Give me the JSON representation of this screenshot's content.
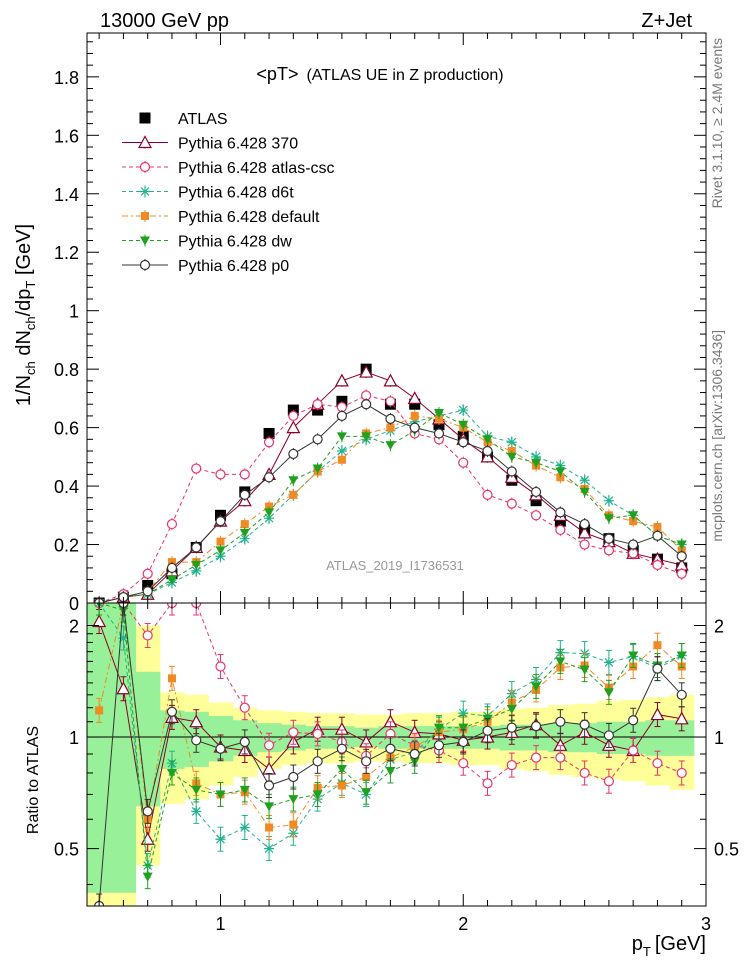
{
  "header": {
    "left": "13000 GeV pp",
    "right": "Z+Jet"
  },
  "side_labels": {
    "rivet": "Rivet 3.1.10, ≥ 2.4M events",
    "mcplots": "mcplots.cern.ch [arXiv:1306.3436]"
  },
  "watermark": "ATLAS_2019_I1736531",
  "colors": {
    "atlas": "#000000",
    "p370": "#8b0028",
    "atlascsc": "#e8336b",
    "d6t": "#21b38f",
    "default": "#f08a24",
    "dw": "#1fa01f",
    "p0": "#333333",
    "band_inner": "#98f098",
    "band_outer": "#ffff99"
  },
  "chart_data": [
    {
      "type": "scatter",
      "title": "<pT>",
      "subtitle": "(ATLAS UE in Z production)",
      "xlabel": "p",
      "xlabel_sub": "T",
      "xlabel_unit": "[GeV]",
      "ylabel_parts": [
        "1/N",
        "ch",
        " dN",
        "ch",
        "/dp",
        "T",
        " [GeV]"
      ],
      "xlim": [
        0.45,
        3.0
      ],
      "ylim": [
        0,
        1.95
      ],
      "yticks": [
        0,
        0.2,
        0.4,
        0.6,
        0.8,
        1,
        1.2,
        1.4,
        1.6,
        1.8
      ],
      "ytick_labels": [
        "0",
        "0.2",
        "0.4",
        "0.6",
        "0.8",
        "1",
        "1.2",
        "1.4",
        "1.6",
        "1.8"
      ],
      "x": [
        0.5,
        0.6,
        0.7,
        0.8,
        0.9,
        1.0,
        1.1,
        1.2,
        1.3,
        1.4,
        1.5,
        1.6,
        1.7,
        1.8,
        1.9,
        2.0,
        2.1,
        2.2,
        2.3,
        2.4,
        2.5,
        2.6,
        2.7,
        2.8,
        2.9
      ],
      "series": [
        {
          "name": "ATLAS",
          "key": "atlas",
          "marker": "square",
          "line": "none",
          "values": [
            0.0,
            0.02,
            0.06,
            0.1,
            0.19,
            0.3,
            0.38,
            0.58,
            0.66,
            0.66,
            0.69,
            0.8,
            0.68,
            0.68,
            0.61,
            0.57,
            0.5,
            0.42,
            0.35,
            0.28,
            0.25,
            0.22,
            0.18,
            0.15,
            0.12
          ]
        },
        {
          "name": "Pythia 6.428 370",
          "key": "p370",
          "marker": "triangle-open",
          "line": "solid",
          "values": [
            0.0,
            0.02,
            0.03,
            0.11,
            0.19,
            0.28,
            0.35,
            0.44,
            0.6,
            0.68,
            0.76,
            0.79,
            0.76,
            0.7,
            0.63,
            0.56,
            0.5,
            0.43,
            0.37,
            0.3,
            0.24,
            0.21,
            0.17,
            0.15,
            0.13
          ]
        },
        {
          "name": "Pythia 6.428 atlas-csc",
          "key": "atlascsc",
          "marker": "circle-open",
          "line": "dashed",
          "values": [
            0.0,
            0.03,
            0.1,
            0.27,
            0.46,
            0.44,
            0.44,
            0.55,
            0.64,
            0.68,
            0.67,
            0.71,
            0.69,
            0.58,
            0.56,
            0.48,
            0.37,
            0.34,
            0.3,
            0.25,
            0.2,
            0.18,
            0.17,
            0.13,
            0.1
          ]
        },
        {
          "name": "Pythia 6.428 d6t",
          "key": "d6t",
          "marker": "star",
          "line": "dashed",
          "values": [
            0.0,
            0.02,
            0.03,
            0.07,
            0.11,
            0.16,
            0.22,
            0.29,
            0.37,
            0.45,
            0.52,
            0.56,
            0.59,
            0.62,
            0.64,
            0.66,
            0.57,
            0.55,
            0.5,
            0.47,
            0.42,
            0.35,
            0.3,
            0.23,
            0.2
          ]
        },
        {
          "name": "Pythia 6.428 default",
          "key": "default",
          "marker": "square-small",
          "line": "dashdot",
          "values": [
            0.0,
            0.02,
            0.04,
            0.14,
            0.14,
            0.21,
            0.27,
            0.33,
            0.37,
            0.45,
            0.49,
            0.58,
            0.6,
            0.64,
            0.63,
            0.6,
            0.55,
            0.52,
            0.47,
            0.43,
            0.39,
            0.3,
            0.28,
            0.26,
            0.18
          ]
        },
        {
          "name": "Pythia 6.428 dw",
          "key": "dw",
          "marker": "triangle-down",
          "line": "dashed",
          "values": [
            0.0,
            0.02,
            0.03,
            0.08,
            0.13,
            0.18,
            0.24,
            0.31,
            0.42,
            0.46,
            0.57,
            0.57,
            0.54,
            0.59,
            0.65,
            0.61,
            0.56,
            0.5,
            0.48,
            0.45,
            0.38,
            0.29,
            0.3,
            0.23,
            0.2
          ]
        },
        {
          "name": "Pythia 6.428 p0",
          "key": "p0",
          "marker": "circle-open",
          "line": "solid",
          "values": [
            0.0,
            0.02,
            0.04,
            0.12,
            0.19,
            0.28,
            0.37,
            0.43,
            0.51,
            0.56,
            0.64,
            0.68,
            0.63,
            0.6,
            0.58,
            0.55,
            0.52,
            0.45,
            0.38,
            0.31,
            0.27,
            0.22,
            0.2,
            0.23,
            0.16
          ]
        }
      ],
      "legend": "top-left"
    },
    {
      "type": "scatter",
      "ylabel": "Ratio to ATLAS",
      "xlim": [
        0.45,
        3.0
      ],
      "ylim": [
        0.35,
        2.3
      ],
      "log_y": true,
      "xticks": [
        1,
        2,
        3
      ],
      "xtick_labels": [
        "1",
        "2",
        "3"
      ],
      "yticks": [
        0.5,
        1,
        2
      ],
      "ytick_labels": [
        "0.5",
        "1",
        "2"
      ],
      "band_inner": [
        [
          0.5,
          0.38,
          2.5
        ],
        [
          0.6,
          0.38,
          2.5
        ],
        [
          0.7,
          0.65,
          1.5
        ],
        [
          0.8,
          0.82,
          1.18
        ],
        [
          0.9,
          0.83,
          1.17
        ],
        [
          1.0,
          0.86,
          1.14
        ],
        [
          1.1,
          0.89,
          1.11
        ],
        [
          1.2,
          0.91,
          1.09
        ],
        [
          1.3,
          0.92,
          1.08
        ],
        [
          1.4,
          0.93,
          1.07
        ],
        [
          1.5,
          0.93,
          1.07
        ],
        [
          1.6,
          0.94,
          1.06
        ],
        [
          1.7,
          0.93,
          1.07
        ],
        [
          1.8,
          0.93,
          1.07
        ],
        [
          1.9,
          0.93,
          1.07
        ],
        [
          2.0,
          0.93,
          1.07
        ],
        [
          2.1,
          0.93,
          1.07
        ],
        [
          2.2,
          0.92,
          1.08
        ],
        [
          2.3,
          0.92,
          1.08
        ],
        [
          2.4,
          0.91,
          1.09
        ],
        [
          2.5,
          0.91,
          1.09
        ],
        [
          2.6,
          0.9,
          1.1
        ],
        [
          2.7,
          0.9,
          1.1
        ],
        [
          2.8,
          0.89,
          1.11
        ],
        [
          2.9,
          0.89,
          1.11
        ]
      ],
      "band_outer": [
        [
          0.5,
          0.35,
          2.5
        ],
        [
          0.6,
          0.35,
          2.5
        ],
        [
          0.7,
          0.45,
          2.0
        ],
        [
          0.8,
          0.66,
          1.32
        ],
        [
          0.9,
          0.68,
          1.3
        ],
        [
          1.0,
          0.74,
          1.24
        ],
        [
          1.1,
          0.78,
          1.2
        ],
        [
          1.2,
          0.82,
          1.18
        ],
        [
          1.3,
          0.84,
          1.17
        ],
        [
          1.4,
          0.85,
          1.16
        ],
        [
          1.5,
          0.85,
          1.16
        ],
        [
          1.6,
          0.86,
          1.15
        ],
        [
          1.7,
          0.86,
          1.15
        ],
        [
          1.8,
          0.85,
          1.16
        ],
        [
          1.9,
          0.85,
          1.16
        ],
        [
          2.0,
          0.84,
          1.17
        ],
        [
          2.1,
          0.84,
          1.17
        ],
        [
          2.2,
          0.82,
          1.19
        ],
        [
          2.3,
          0.81,
          1.2
        ],
        [
          2.4,
          0.79,
          1.22
        ],
        [
          2.5,
          0.78,
          1.23
        ],
        [
          2.6,
          0.77,
          1.25
        ],
        [
          2.7,
          0.76,
          1.26
        ],
        [
          2.8,
          0.74,
          1.28
        ],
        [
          2.9,
          0.72,
          1.3
        ]
      ],
      "x": [
        0.5,
        0.6,
        0.7,
        0.8,
        0.9,
        1.0,
        1.1,
        1.2,
        1.3,
        1.4,
        1.5,
        1.6,
        1.7,
        1.8,
        1.9,
        2.0,
        2.1,
        2.2,
        2.3,
        2.4,
        2.5,
        2.6,
        2.7,
        2.8,
        2.9
      ],
      "series": [
        {
          "name": "Pythia 6.428 370",
          "key": "p370",
          "values": [
            2.05,
            1.35,
            0.53,
            1.13,
            1.1,
            0.94,
            0.92,
            0.82,
            0.97,
            1.05,
            1.05,
            0.97,
            1.1,
            1.03,
            1.02,
            0.98,
            1.0,
            1.03,
            1.08,
            0.95,
            1.03,
            0.95,
            0.92,
            1.15,
            1.12
          ]
        },
        {
          "name": "Pythia 6.428 atlas-csc",
          "key": "atlascsc",
          "values": [
            2.5,
            2.5,
            1.88,
            2.5,
            2.45,
            1.55,
            1.2,
            0.95,
            1.03,
            1.02,
            0.97,
            0.89,
            1.02,
            0.95,
            0.92,
            0.85,
            0.75,
            0.84,
            0.88,
            0.88,
            0.8,
            0.76,
            0.92,
            0.85,
            0.8
          ]
        },
        {
          "name": "Pythia 6.428 d6t",
          "key": "d6t",
          "values": [
            2.5,
            1.85,
            0.45,
            0.85,
            0.63,
            0.53,
            0.57,
            0.5,
            0.55,
            0.68,
            0.75,
            0.7,
            0.87,
            0.91,
            1.05,
            1.16,
            1.14,
            1.31,
            1.43,
            1.69,
            1.68,
            1.59,
            1.65,
            1.53,
            1.66
          ]
        },
        {
          "name": "Pythia 6.428 default",
          "key": "default",
          "values": [
            1.18,
            2.5,
            0.6,
            1.44,
            0.75,
            0.7,
            0.71,
            0.57,
            0.58,
            0.73,
            0.74,
            0.78,
            0.88,
            0.94,
            1.03,
            1.05,
            1.1,
            1.24,
            1.34,
            1.54,
            1.56,
            1.36,
            1.55,
            1.77,
            1.55
          ]
        },
        {
          "name": "Pythia 6.428 dw",
          "key": "dw",
          "values": [
            2.5,
            2.2,
            0.42,
            0.8,
            0.72,
            0.7,
            0.72,
            0.65,
            0.68,
            0.7,
            0.82,
            0.71,
            0.81,
            0.86,
            1.06,
            1.06,
            1.12,
            1.19,
            1.37,
            1.6,
            1.52,
            1.32,
            1.66,
            1.56,
            1.66
          ]
        },
        {
          "name": "Pythia 6.428 p0",
          "key": "p0",
          "values": [
            0.0,
            2.5,
            0.63,
            1.17,
            0.98,
            0.93,
            0.97,
            0.74,
            0.78,
            0.86,
            0.93,
            0.86,
            0.93,
            0.9,
            0.95,
            0.97,
            1.04,
            1.06,
            1.07,
            1.1,
            1.08,
            1.01,
            1.11,
            1.53,
            1.3
          ]
        }
      ]
    }
  ]
}
